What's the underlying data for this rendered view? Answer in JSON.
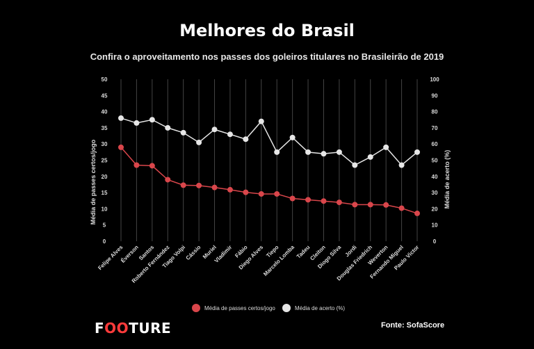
{
  "chart_data": {
    "type": "line",
    "title": "Melhores do Brasil",
    "subtitle": "Confira o aproveitamento nos passes dos goleiros titulares no Brasileirão de 2019",
    "categories": [
      "Felipe Alves",
      "Éverson",
      "Santos",
      "Roberto Fernández",
      "Tiago Volpi",
      "Cássio",
      "Muriel",
      "Vladimir",
      "Fábio",
      "Diego Alves",
      "Tiepo",
      "Marcelo Lomba",
      "Tadeu",
      "Cleiton",
      "Diogo Silva",
      "Jordi",
      "Douglas Friedrich",
      "Weverton",
      "Fernando Miguel",
      "Paulo Victor"
    ],
    "series": [
      {
        "name": "Média de passes certos/jogo",
        "axis": "left",
        "color": "#d9464b",
        "values": [
          29,
          23.5,
          23.3,
          19,
          17.3,
          17.2,
          16.6,
          15.9,
          15.1,
          14.6,
          14.6,
          13.2,
          12.8,
          12.4,
          12.0,
          11.3,
          11.3,
          11.2,
          10.2,
          8.6
        ]
      },
      {
        "name": "Média de acerto (%)",
        "axis": "right",
        "color": "#e6e6e6",
        "values": [
          76,
          73,
          75,
          70,
          67,
          61,
          69,
          66,
          63,
          74,
          55,
          64,
          55,
          54,
          55,
          47,
          52,
          58,
          47,
          55
        ]
      }
    ],
    "yleft": {
      "label": "Média de passes certos/jogo",
      "range": [
        0,
        50
      ],
      "ticks": [
        "0",
        "5",
        "10",
        "15",
        "20",
        "25",
        "30",
        "35",
        "40",
        "45",
        "50"
      ]
    },
    "yright": {
      "label": "Média de acerto (%)",
      "range": [
        0,
        100
      ],
      "ticks": [
        "0",
        "10",
        "20",
        "30",
        "40",
        "50",
        "60",
        "70",
        "80",
        "90",
        "100"
      ]
    },
    "grid": "vertical",
    "legend": "bottom"
  },
  "brand": {
    "pre": "F",
    "mid": "OO",
    "post": "TURE"
  },
  "source": "Fonte: SofaScore"
}
